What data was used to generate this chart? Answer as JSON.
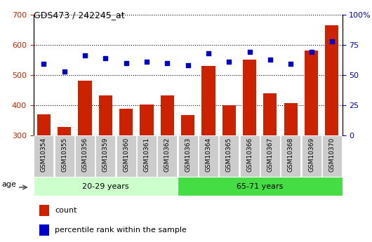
{
  "title": "GDS473 / 242245_at",
  "categories": [
    "GSM10354",
    "GSM10355",
    "GSM10356",
    "GSM10359",
    "GSM10360",
    "GSM10361",
    "GSM10362",
    "GSM10363",
    "GSM10364",
    "GSM10365",
    "GSM10366",
    "GSM10367",
    "GSM10368",
    "GSM10369",
    "GSM10370"
  ],
  "counts": [
    370,
    328,
    482,
    432,
    388,
    402,
    432,
    368,
    530,
    400,
    550,
    440,
    408,
    580,
    665
  ],
  "percentile": [
    59,
    53,
    66,
    64,
    60,
    61,
    60,
    58,
    68,
    61,
    69,
    63,
    59,
    69,
    78
  ],
  "group1_label": "20-29 years",
  "group2_label": "65-71 years",
  "group1_count": 7,
  "group2_count": 8,
  "ylim_left": [
    300,
    700
  ],
  "ylim_right": [
    0,
    100
  ],
  "yticks_left": [
    300,
    400,
    500,
    600,
    700
  ],
  "yticks_right": [
    0,
    25,
    50,
    75,
    100
  ],
  "bar_color": "#cc2200",
  "scatter_color": "#0000cc",
  "group1_bg": "#ccffcc",
  "group2_bg": "#44dd44",
  "tick_bg": "#cccccc",
  "legend_count_color": "#cc2200",
  "legend_pct_color": "#0000cc",
  "dotted_grid_color": "#000000",
  "bar_bottom": 300,
  "age_label": "age"
}
